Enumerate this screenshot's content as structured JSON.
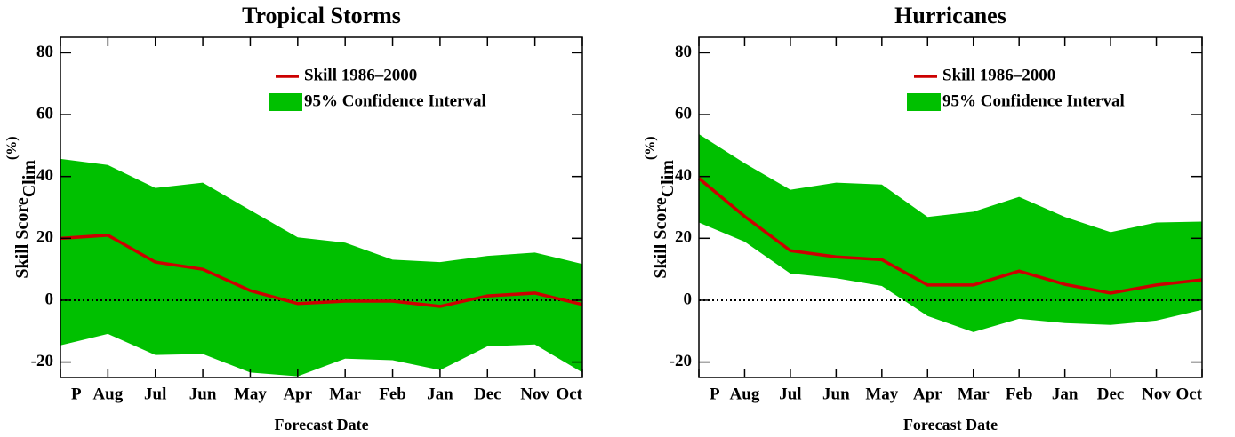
{
  "chart_data": [
    {
      "type": "line",
      "title": "Tropical Storms",
      "xlabel": "Forecast Date",
      "ylabel": "Skill Score",
      "ylabel_sub": "Clim",
      "ylabel_sup": "(%)",
      "categories": [
        "P",
        "Aug",
        "Jul",
        "Jun",
        "May",
        "Apr",
        "Mar",
        "Feb",
        "Jan",
        "Dec",
        "Nov",
        "Oct"
      ],
      "series": [
        {
          "name": "Skill 1986–2000",
          "color": "#cc0000",
          "values": [
            20,
            21,
            12.3,
            10,
            3.1,
            -1.1,
            -0.3,
            -0.3,
            -2,
            1.4,
            2.3,
            -1.4
          ]
        }
      ],
      "band": {
        "name": "95% Confidence Interval",
        "color": "#00c000",
        "upper": [
          45.7,
          43.7,
          36.3,
          38,
          29.1,
          20.3,
          18.6,
          13.1,
          12.3,
          14.3,
          15.4,
          11.7
        ],
        "lower": [
          -14.6,
          -10.9,
          -17.7,
          -17.4,
          -23.4,
          -24.6,
          -18.9,
          -19.4,
          -22.6,
          -14.9,
          -14.3,
          -23.4
        ]
      },
      "ylim": [
        -25,
        85
      ],
      "yticks": [
        -20,
        0,
        20,
        40,
        60,
        80
      ],
      "zero_line": true
    },
    {
      "type": "line",
      "title": "Hurricanes",
      "xlabel": "Forecast Date",
      "ylabel": "Skill Score",
      "ylabel_sub": "Clim",
      "ylabel_sup": "(%)",
      "categories": [
        "P",
        "Aug",
        "Jul",
        "Jun",
        "May",
        "Apr",
        "Mar",
        "Feb",
        "Jan",
        "Dec",
        "Nov",
        "Oct"
      ],
      "series": [
        {
          "name": "Skill 1986–2000",
          "color": "#cc0000",
          "values": [
            39.4,
            27.1,
            16,
            14,
            13.1,
            4.9,
            4.9,
            9.4,
            5.1,
            2.3,
            4.9,
            6.6
          ]
        }
      ],
      "band": {
        "name": "95% Confidence Interval",
        "color": "#00c000",
        "upper": [
          53.7,
          44.3,
          35.7,
          38,
          37.4,
          26.9,
          28.6,
          33.4,
          26.9,
          22,
          25.1,
          25.4
        ],
        "lower": [
          25.1,
          18.9,
          8.6,
          7.1,
          4.6,
          -5.1,
          -10.3,
          -6,
          -7.4,
          -8,
          -6.6,
          -3.1
        ]
      },
      "ylim": [
        -25,
        85
      ],
      "yticks": [
        -20,
        0,
        20,
        40,
        60,
        80
      ],
      "zero_line": true
    }
  ]
}
